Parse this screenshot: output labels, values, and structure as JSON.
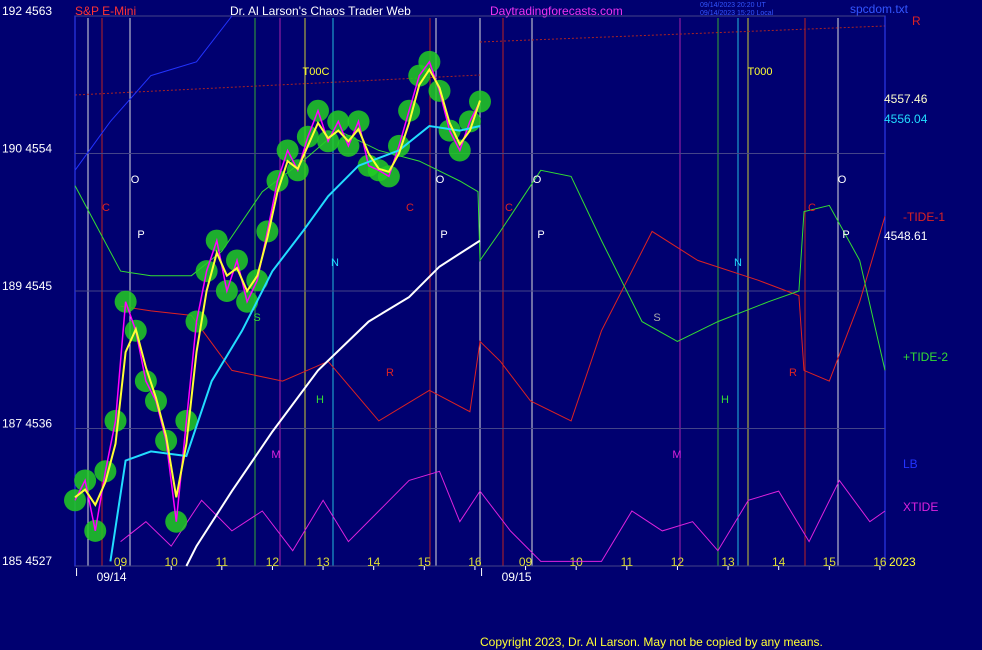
{
  "chart_data": {
    "type": "line",
    "title": "Dr. Al Larson's Chaos Trader Web",
    "instrument": "S&P E-Mini",
    "site": "Daytradingforecasts.com",
    "timestamps": [
      "09/14/2023 20:20 UT",
      "09/14/2023 15:20 Local"
    ],
    "file": "spcdom.txt",
    "copyright": "Copyright 2023, Dr. Al Larson. May not be copied by any means.",
    "date_labels": [
      "09/14",
      "09/15"
    ],
    "year": "2023",
    "xlim": [
      -0.9,
      15.1
    ],
    "ylim": [
      4527,
      4563
    ],
    "grid": true,
    "background": "#000070",
    "xticks": [
      {
        "value": 0,
        "label": "09"
      },
      {
        "value": 1,
        "label": "10"
      },
      {
        "value": 2,
        "label": "11"
      },
      {
        "value": 3,
        "label": "12"
      },
      {
        "value": 4,
        "label": "13"
      },
      {
        "value": 5,
        "label": "14"
      },
      {
        "value": 6,
        "label": "15"
      },
      {
        "value": 7,
        "label": "16"
      },
      {
        "value": 8,
        "label": "09"
      },
      {
        "value": 9,
        "label": "10"
      },
      {
        "value": 10,
        "label": "11"
      },
      {
        "value": 11,
        "label": "12"
      },
      {
        "value": 12,
        "label": "13"
      },
      {
        "value": 13,
        "label": "14"
      },
      {
        "value": 14,
        "label": "15"
      },
      {
        "value": 15,
        "label": "16"
      }
    ],
    "yticks": [
      {
        "value": 4527,
        "label": "185 4527"
      },
      {
        "value": 4536,
        "label": "187 4536"
      },
      {
        "value": 4545,
        "label": "189 4545"
      },
      {
        "value": 4554,
        "label": "190 4554"
      },
      {
        "value": 4563,
        "label": "192 4563"
      }
    ],
    "x": [
      -0.9,
      -0.7,
      -0.5,
      -0.3,
      -0.1,
      0.1,
      0.3,
      0.5,
      0.7,
      0.9,
      1.1,
      1.3,
      1.5,
      1.7,
      1.9,
      2.1,
      2.3,
      2.5,
      2.7,
      2.9,
      3.1,
      3.3,
      3.5,
      3.7,
      3.9,
      4.1,
      4.3,
      4.5,
      4.7,
      4.9,
      5.1,
      5.3,
      5.5,
      5.7,
      5.9,
      6.1,
      6.3,
      6.5,
      6.7,
      6.9,
      7.1
    ],
    "series": [
      {
        "color": "#ff00ff",
        "marker_color": "#22cc22",
        "width": 1.5,
        "values": [
          4531.3,
          4532.6,
          4529.3,
          4533.2,
          4536.5,
          4544.3,
          4542.4,
          4539.1,
          4537.8,
          4535.2,
          4529.9,
          4536.5,
          4543.0,
          4546.3,
          4548.3,
          4545.0,
          4547.0,
          4544.3,
          4545.7,
          4548.9,
          4552.2,
          4554.2,
          4552.9,
          4555.1,
          4556.8,
          4554.8,
          4556.1,
          4554.5,
          4556.1,
          4553.2,
          4552.9,
          4552.5,
          4554.5,
          4556.8,
          4559.1,
          4560.0,
          4558.1,
          4555.5,
          4554.2,
          4556.1,
          4557.4
        ]
      },
      {
        "color": "#ffff33",
        "width": 2,
        "values": [
          4531.5,
          4532,
          4531,
          4532.5,
          4535,
          4541,
          4542.5,
          4540,
          4538,
          4535.5,
          4531.5,
          4535,
          4541,
          4545,
          4547.5,
          4546,
          4546.5,
          4545,
          4546,
          4548.5,
          4551.5,
          4553.5,
          4553,
          4554.5,
          4556,
          4555,
          4555.5,
          4554.8,
          4555.6,
          4554,
          4553,
          4552.8,
          4554,
          4556,
          4558.5,
          4559.5,
          4558.3,
          4556,
          4554.6,
          4555.5,
          4557.46
        ]
      },
      {
        "color": "#22ddff",
        "width": 2,
        "x": [
          -0.2,
          0.1,
          0.6,
          1.3,
          1.8,
          2.4,
          3.0,
          3.6,
          4.1,
          4.7,
          5.5,
          6.1,
          6.7,
          7.1
        ],
        "values": [
          4527.3,
          4533.9,
          4534.5,
          4534.2,
          4539.1,
          4542.4,
          4546.3,
          4548.9,
          4551.2,
          4553.2,
          4554.2,
          4555.8,
          4555.5,
          4555.8
        ]
      },
      {
        "color": "#ffffff",
        "width": 2,
        "x": [
          1.3,
          1.5,
          2.2,
          3.0,
          3.9,
          4.9,
          5.7,
          6.3,
          7.1
        ],
        "values": [
          4527.0,
          4528.3,
          4531.9,
          4535.8,
          4539.8,
          4543.0,
          4544.6,
          4546.6,
          4548.3
        ]
      },
      {
        "name": "+TIDE-2",
        "color": "#33dd33",
        "width": 1,
        "x": [
          -0.9,
          0,
          0.6,
          1.4,
          2.0,
          2.8,
          3.6,
          4.3,
          5.1,
          5.9,
          6.7,
          7.06,
          7.1,
          7.5,
          8.3,
          8.9,
          9.5,
          10.3,
          11.0,
          11.8,
          12.8,
          13.4,
          13.5,
          14.0,
          14.6,
          15.1
        ],
        "values": [
          4551.9,
          4546.3,
          4546.0,
          4546.0,
          4547.6,
          4551.5,
          4553.5,
          4555.5,
          4554.2,
          4553.5,
          4552.2,
          4551.5,
          4547.0,
          4548.9,
          4552.9,
          4552.5,
          4548.3,
          4543.0,
          4541.7,
          4543.0,
          4544.3,
          4545.0,
          4550.2,
          4550.6,
          4547.0,
          4539.8
        ]
      },
      {
        "name": "-TIDE-1",
        "color": "#dd2222",
        "width": 1,
        "x": [
          0,
          0.6,
          1.4,
          2.2,
          3.2,
          4.1,
          5.1,
          6.1,
          6.9,
          7.1,
          7.5,
          8.1,
          8.9,
          9.5,
          10.5,
          11.4,
          12.6,
          13.4,
          13.5,
          14.0,
          14.6,
          15.1
        ],
        "values": [
          4544.0,
          4543.7,
          4543.4,
          4539.8,
          4539.1,
          4540.4,
          4536.5,
          4538.5,
          4537.1,
          4541.7,
          4540.4,
          4537.8,
          4536.5,
          4542.4,
          4548.9,
          4547.0,
          4545.7,
          4544.7,
          4539.8,
          4539.1,
          4544.3,
          4549.9
        ]
      },
      {
        "name": "XTIDE",
        "color": "#dd22dd",
        "width": 1,
        "x": [
          0,
          0.5,
          1.0,
          1.6,
          2.2,
          2.8,
          3.4,
          4.0,
          4.5,
          5.1,
          5.7,
          6.3,
          6.7,
          7.1,
          7.7,
          8.3,
          8.9,
          9.5,
          10.1,
          10.7,
          11.3,
          11.8,
          12.4,
          13.0,
          13.6,
          14.2,
          14.8,
          15.1
        ],
        "values": [
          4528.6,
          4529.9,
          4528.3,
          4531.3,
          4529.3,
          4530.6,
          4528.0,
          4531.3,
          4528.6,
          4530.6,
          4532.6,
          4533.2,
          4529.9,
          4531.9,
          4529.3,
          4527.3,
          4527.3,
          4527.3,
          4530.6,
          4529.3,
          4529.9,
          4528.0,
          4531.3,
          4531.9,
          4528.6,
          4532.6,
          4529.9,
          4530.6
        ]
      },
      {
        "name": "LB",
        "color": "#2233ff",
        "width": 1,
        "x": [
          -0.9,
          -0.2,
          0.6,
          1.5,
          2.2
        ],
        "values": [
          4552.9,
          4556.1,
          4559.1,
          4560.0,
          4563
        ]
      }
    ],
    "annotations": [
      {
        "text": "4557.46",
        "color": "#ffffcc"
      },
      {
        "text": "4556.04",
        "color": "#22ddff"
      },
      {
        "text": "4548.61",
        "color": "#ffffff"
      },
      {
        "text": "R",
        "color": "#dd2222"
      }
    ],
    "markers": [
      {
        "text": "O",
        "color": "#ffffff"
      },
      {
        "text": "P",
        "color": "#ffffff"
      },
      {
        "text": "C",
        "color": "#dd2222"
      },
      {
        "text": "T00C",
        "color": "#ffff33"
      },
      {
        "text": "N",
        "color": "#22ddff"
      },
      {
        "text": "S",
        "color": "#33dd33"
      },
      {
        "text": "H",
        "color": "#33dd33"
      },
      {
        "text": "R",
        "color": "#dd2222"
      },
      {
        "text": "M",
        "color": "#dd22dd"
      },
      {
        "text": "C",
        "color": "#dd2222"
      },
      {
        "text": "O",
        "color": "#ffffff"
      },
      {
        "text": "P",
        "color": "#ffffff"
      },
      {
        "text": "C",
        "color": "#dd2222"
      },
      {
        "text": "O",
        "color": "#ffffff"
      },
      {
        "text": "P",
        "color": "#ffffff"
      },
      {
        "text": "S",
        "color": "#aaaaaa"
      },
      {
        "text": "N",
        "color": "#22ddff"
      },
      {
        "text": "H",
        "color": "#33dd33"
      },
      {
        "text": "M",
        "color": "#dd22dd"
      },
      {
        "text": "R",
        "color": "#dd2222"
      },
      {
        "text": "T000",
        "color": "#ffff33"
      },
      {
        "text": "C",
        "color": "#dd2222"
      },
      {
        "text": "O",
        "color": "#ffffff"
      },
      {
        "text": "P",
        "color": "#ffffff"
      }
    ]
  }
}
